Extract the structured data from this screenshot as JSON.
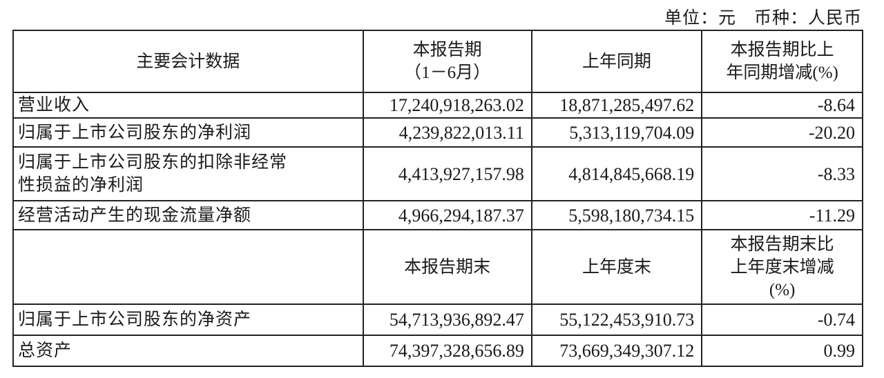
{
  "unit_note": "单位：元　币种：人民币",
  "header": {
    "col1": "主要会计数据",
    "col2_line1": "本报告期",
    "col2_line2": "（1－6月）",
    "col3": "上年同期",
    "col4_line1": "本报告期比上",
    "col4_line2": "年同期增减(%)"
  },
  "rows_a": [
    {
      "label": "营业收入",
      "current": "17,240,918,263.02",
      "prior": "18,871,285,497.62",
      "change": "-8.64"
    },
    {
      "label": "归属于上市公司股东的净利润",
      "current": "4,239,822,013.11",
      "prior": "5,313,119,704.09",
      "change": "-20.20"
    },
    {
      "label_line1": "归属于上市公司股东的扣除非经常",
      "label_line2": "性损益的净利润",
      "current": "4,413,927,157.98",
      "prior": "4,814,845,668.19",
      "change": "-8.33"
    },
    {
      "label": "经营活动产生的现金流量净额",
      "current": "4,966,294,187.37",
      "prior": "5,598,180,734.15",
      "change": "-11.29"
    }
  ],
  "header2": {
    "col2": "本报告期末",
    "col3": "上年度末",
    "col4_line1": "本报告期末比",
    "col4_line2": "上年度末增减",
    "col4_line3": "(%)"
  },
  "rows_b": [
    {
      "label": "归属于上市公司股东的净资产",
      "current": "54,713,936,892.47",
      "prior": "55,122,453,910.73",
      "change": "-0.74"
    },
    {
      "label": "总资产",
      "current": "74,397,328,656.89",
      "prior": "73,669,349,307.12",
      "change": "0.99"
    }
  ]
}
